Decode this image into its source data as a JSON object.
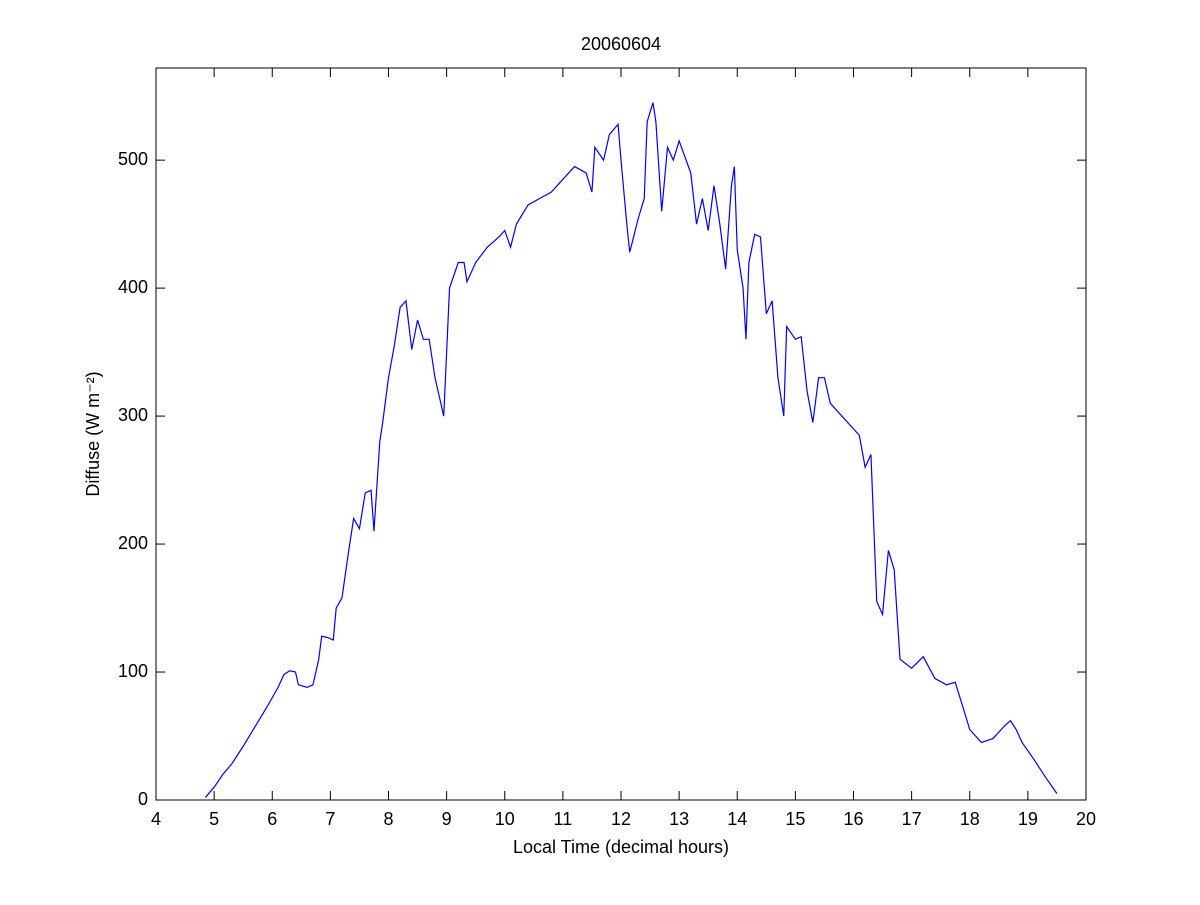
{
  "chart_data": {
    "type": "line",
    "title": "20060604",
    "xlabel": "Local Time (decimal hours)",
    "ylabel": "Diffuse (W m⁻²)",
    "x": [
      4.85,
      5.0,
      5.15,
      5.3,
      5.5,
      5.7,
      5.9,
      6.1,
      6.2,
      6.3,
      6.4,
      6.45,
      6.6,
      6.7,
      6.8,
      6.85,
      6.95,
      7.05,
      7.1,
      7.2,
      7.3,
      7.4,
      7.5,
      7.6,
      7.7,
      7.75,
      7.85,
      7.9,
      8.0,
      8.1,
      8.2,
      8.3,
      8.4,
      8.5,
      8.6,
      8.7,
      8.8,
      8.9,
      8.95,
      9.05,
      9.2,
      9.3,
      9.35,
      9.5,
      9.7,
      9.9,
      10.0,
      10.1,
      10.2,
      10.4,
      10.6,
      10.8,
      11.0,
      11.2,
      11.4,
      11.5,
      11.55,
      11.7,
      11.8,
      11.95,
      12.0,
      12.1,
      12.15,
      12.3,
      12.4,
      12.45,
      12.55,
      12.6,
      12.7,
      12.8,
      12.9,
      13.0,
      13.2,
      13.3,
      13.4,
      13.5,
      13.6,
      13.7,
      13.8,
      13.9,
      13.95,
      14.0,
      14.1,
      14.15,
      14.2,
      14.3,
      14.4,
      14.5,
      14.6,
      14.7,
      14.8,
      14.85,
      15.0,
      15.1,
      15.2,
      15.3,
      15.4,
      15.5,
      15.6,
      15.8,
      16.0,
      16.1,
      16.2,
      16.3,
      16.4,
      16.5,
      16.6,
      16.7,
      16.8,
      17.0,
      17.2,
      17.4,
      17.6,
      17.75,
      17.9,
      18.0,
      18.2,
      18.4,
      18.6,
      18.7,
      18.8,
      18.9,
      19.1,
      19.3,
      19.5
    ],
    "series": [
      {
        "name": "Diffuse",
        "color": "#0000ff",
        "values": [
          2,
          10,
          20,
          28,
          42,
          57,
          72,
          88,
          98,
          101,
          100,
          90,
          88,
          90,
          110,
          128,
          127,
          125,
          150,
          158,
          190,
          220,
          212,
          240,
          242,
          210,
          280,
          295,
          330,
          355,
          385,
          390,
          352,
          375,
          360,
          360,
          330,
          310,
          300,
          400,
          420,
          420,
          405,
          420,
          432,
          440,
          445,
          432,
          450,
          465,
          470,
          475,
          485,
          495,
          490,
          475,
          510,
          500,
          520,
          528,
          500,
          450,
          428,
          455,
          470,
          530,
          545,
          530,
          460,
          510,
          500,
          515,
          490,
          450,
          470,
          445,
          480,
          450,
          415,
          480,
          495,
          430,
          400,
          360,
          420,
          442,
          440,
          380,
          390,
          330,
          300,
          370,
          360,
          362,
          320,
          295,
          330,
          330,
          310,
          300,
          290,
          285,
          260,
          270,
          155,
          145,
          195,
          180,
          110,
          103,
          112,
          95,
          90,
          92,
          70,
          55,
          45,
          48,
          58,
          62,
          55,
          45,
          32,
          18,
          5
        ]
      }
    ],
    "xlim": [
      4,
      20
    ],
    "ylim": [
      0,
      572
    ],
    "xticks": [
      4,
      5,
      6,
      7,
      8,
      9,
      10,
      11,
      12,
      13,
      14,
      15,
      16,
      17,
      18,
      19,
      20
    ],
    "yticks": [
      0,
      100,
      200,
      300,
      400,
      500
    ]
  }
}
